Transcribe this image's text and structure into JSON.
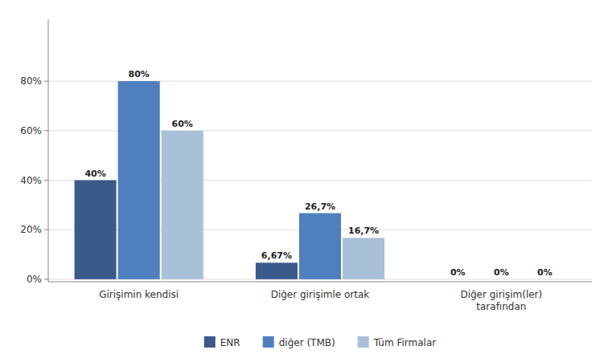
{
  "chart_data": {
    "type": "bar",
    "categories": [
      "Girişimin kendisi",
      "Diğer girişimle ortak",
      "Diğer girişim(ler)\ntarafından"
    ],
    "series": [
      {
        "name": "ENR",
        "color": "#3A5A8C",
        "values": [
          40,
          6.67,
          0
        ],
        "value_labels": [
          "40%",
          "6,67%",
          "0%"
        ]
      },
      {
        "name": "diğer (TMB)",
        "color": "#4F7FBF",
        "values": [
          80,
          26.7,
          0
        ],
        "value_labels": [
          "80%",
          "26,7%",
          "0%"
        ]
      },
      {
        "name": "Tüm Firmalar",
        "color": "#A8C0D8",
        "values": [
          60,
          16.7,
          0
        ],
        "value_labels": [
          "60%",
          "16,7%",
          "0%"
        ]
      }
    ],
    "ylim": [
      -1,
      105
    ],
    "yticks": [
      {
        "value": 0,
        "label": "0%"
      },
      {
        "value": 20,
        "label": "20%"
      },
      {
        "value": 40,
        "label": "40%"
      },
      {
        "value": 60,
        "label": "60%"
      },
      {
        "value": 80,
        "label": "80%"
      }
    ],
    "grid": true,
    "data_labels": true,
    "legend": "bottom"
  }
}
